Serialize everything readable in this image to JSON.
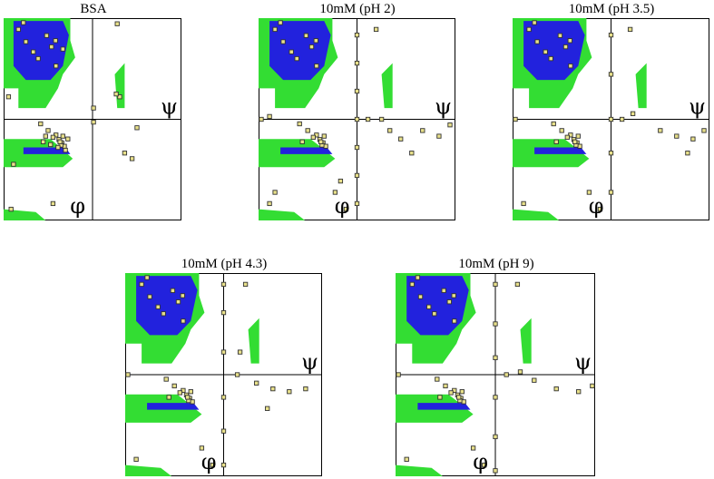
{
  "figure": {
    "panels": [
      {
        "title": "BSA",
        "x_symbol": "φ",
        "y_symbol": "ψ"
      },
      {
        "title": "10mM (pH 2)",
        "x_symbol": "φ",
        "y_symbol": "ψ"
      },
      {
        "title": "10mM (pH 3.5)",
        "x_symbol": "φ",
        "y_symbol": "ψ"
      },
      {
        "title": "10mM (pH 4.3)",
        "x_symbol": "φ",
        "y_symbol": "ψ"
      },
      {
        "title": "10mM (pH 9)",
        "x_symbol": "φ",
        "y_symbol": "ψ"
      }
    ]
  },
  "colors": {
    "allowed_region": "#33dd33",
    "core_region": "#2222dd",
    "residue_fill": "#e8e08a",
    "residue_stroke": "#333333",
    "axis": "#000000"
  },
  "chart_data": [
    {
      "type": "scatter",
      "title": "BSA",
      "xlabel": "φ",
      "ylabel": "ψ",
      "xlim": [
        -180,
        180
      ],
      "ylim": [
        -180,
        180
      ],
      "series": [
        {
          "values": [
            [
              -93,
              149
            ],
            [
              -83,
              129
            ],
            [
              -110,
              108
            ],
            [
              -74,
              95
            ],
            [
              -135,
              138
            ],
            [
              -62,
              -42
            ],
            [
              -68,
              -36
            ],
            [
              -57,
              -48
            ],
            [
              -74,
              -28
            ],
            [
              -90,
              -20
            ],
            [
              -64,
              -46
            ],
            [
              -105,
              -8
            ],
            [
              -80,
              -32
            ],
            [
              -66,
              -40
            ],
            [
              -140,
              172
            ],
            [
              -150,
              160
            ],
            [
              -120,
              120
            ],
            [
              -75,
              140
            ],
            [
              -60,
              -30
            ],
            [
              -100,
              -40
            ],
            [
              -60,
              125
            ],
            [
              -160,
              -80
            ],
            [
              -170,
              40
            ],
            [
              55,
              40
            ],
            [
              48,
              45
            ],
            [
              90,
              -15
            ],
            [
              65,
              -60
            ],
            [
              -80,
              -150
            ],
            [
              50,
              170
            ],
            [
              -165,
              -160
            ],
            [
              -55,
              -55
            ],
            [
              -70,
              -50
            ],
            [
              -85,
              -45
            ],
            [
              -50,
              -35
            ],
            [
              -95,
              -30
            ],
            [
              2,
              20
            ],
            [
              2,
              -5
            ],
            [
              80,
              -70
            ]
          ]
        }
      ]
    },
    {
      "type": "scatter",
      "title": "10mM (pH 2)",
      "xlabel": "φ",
      "ylabel": "ψ",
      "xlim": [
        -180,
        180
      ],
      "ylim": [
        -180,
        180
      ],
      "series": [
        {
          "values": [
            [
              -93,
              149
            ],
            [
              -83,
              129
            ],
            [
              -110,
              108
            ],
            [
              -74,
              95
            ],
            [
              -135,
              138
            ],
            [
              -62,
              -42
            ],
            [
              -68,
              -36
            ],
            [
              -57,
              -48
            ],
            [
              -74,
              -28
            ],
            [
              -90,
              -20
            ],
            [
              -64,
              -46
            ],
            [
              -105,
              -8
            ],
            [
              -80,
              -32
            ],
            [
              -66,
              -40
            ],
            [
              -140,
              172
            ],
            [
              -150,
              160
            ],
            [
              -120,
              120
            ],
            [
              -75,
              140
            ],
            [
              -60,
              -30
            ],
            [
              -100,
              -40
            ],
            [
              -160,
              -150
            ],
            [
              -150,
              -130
            ],
            [
              -30,
              -110
            ],
            [
              -40,
              -130
            ],
            [
              -20,
              -160
            ],
            [
              0,
              150
            ],
            [
              0,
              100
            ],
            [
              0,
              50
            ],
            [
              0,
              0
            ],
            [
              0,
              -50
            ],
            [
              0,
              -100
            ],
            [
              0,
              -150
            ],
            [
              35,
              160
            ],
            [
              60,
              -20
            ],
            [
              80,
              -35
            ],
            [
              120,
              -20
            ],
            [
              150,
              -30
            ],
            [
              170,
              -10
            ],
            [
              100,
              -60
            ],
            [
              -175,
              0
            ],
            [
              -160,
              5
            ],
            [
              20,
              0
            ],
            [
              45,
              0
            ]
          ]
        }
      ]
    },
    {
      "type": "scatter",
      "title": "10mM (pH 3.5)",
      "xlabel": "φ",
      "ylabel": "ψ",
      "xlim": [
        -180,
        180
      ],
      "ylim": [
        -180,
        180
      ],
      "series": [
        {
          "values": [
            [
              -93,
              149
            ],
            [
              -83,
              129
            ],
            [
              -110,
              108
            ],
            [
              -74,
              95
            ],
            [
              -135,
              138
            ],
            [
              -62,
              -42
            ],
            [
              -68,
              -36
            ],
            [
              -57,
              -48
            ],
            [
              -74,
              -28
            ],
            [
              -90,
              -20
            ],
            [
              -64,
              -46
            ],
            [
              -105,
              -8
            ],
            [
              -80,
              -32
            ],
            [
              -66,
              -40
            ],
            [
              -140,
              172
            ],
            [
              -150,
              160
            ],
            [
              -120,
              120
            ],
            [
              -75,
              140
            ],
            [
              -60,
              -30
            ],
            [
              -100,
              -40
            ],
            [
              -160,
              -150
            ],
            [
              -40,
              -130
            ],
            [
              -20,
              -160
            ],
            [
              0,
              150
            ],
            [
              0,
              80
            ],
            [
              0,
              0
            ],
            [
              0,
              -60
            ],
            [
              0,
              -130
            ],
            [
              35,
              160
            ],
            [
              90,
              -20
            ],
            [
              120,
              -30
            ],
            [
              150,
              -35
            ],
            [
              170,
              -20
            ],
            [
              140,
              -60
            ],
            [
              -175,
              0
            ],
            [
              20,
              0
            ],
            [
              40,
              10
            ]
          ]
        }
      ]
    },
    {
      "type": "scatter",
      "title": "10mM (pH 4.3)",
      "xlabel": "φ",
      "ylabel": "ψ",
      "xlim": [
        -180,
        180
      ],
      "ylim": [
        -180,
        180
      ],
      "series": [
        {
          "values": [
            [
              -93,
              149
            ],
            [
              -83,
              129
            ],
            [
              -110,
              108
            ],
            [
              -74,
              95
            ],
            [
              -135,
              138
            ],
            [
              -62,
              -42
            ],
            [
              -68,
              -36
            ],
            [
              -57,
              -48
            ],
            [
              -74,
              -28
            ],
            [
              -90,
              -20
            ],
            [
              -64,
              -46
            ],
            [
              -105,
              -8
            ],
            [
              -80,
              -32
            ],
            [
              -66,
              -40
            ],
            [
              -140,
              172
            ],
            [
              -150,
              160
            ],
            [
              -120,
              120
            ],
            [
              -75,
              140
            ],
            [
              -60,
              -30
            ],
            [
              -100,
              -40
            ],
            [
              -160,
              -150
            ],
            [
              -40,
              -130
            ],
            [
              -20,
              -160
            ],
            [
              0,
              160
            ],
            [
              0,
              110
            ],
            [
              0,
              40
            ],
            [
              0,
              -40
            ],
            [
              0,
              -100
            ],
            [
              0,
              -160
            ],
            [
              40,
              160
            ],
            [
              30,
              40
            ],
            [
              60,
              -15
            ],
            [
              90,
              -25
            ],
            [
              120,
              -30
            ],
            [
              150,
              -25
            ],
            [
              80,
              -60
            ],
            [
              -175,
              0
            ],
            [
              25,
              0
            ]
          ]
        }
      ]
    },
    {
      "type": "scatter",
      "title": "10mM (pH 9)",
      "xlabel": "φ",
      "ylabel": "ψ",
      "xlim": [
        -180,
        180
      ],
      "ylim": [
        -180,
        180
      ],
      "series": [
        {
          "values": [
            [
              -93,
              149
            ],
            [
              -83,
              129
            ],
            [
              -110,
              108
            ],
            [
              -74,
              95
            ],
            [
              -135,
              138
            ],
            [
              -62,
              -42
            ],
            [
              -68,
              -36
            ],
            [
              -57,
              -48
            ],
            [
              -74,
              -28
            ],
            [
              -90,
              -20
            ],
            [
              -64,
              -46
            ],
            [
              -105,
              -8
            ],
            [
              -80,
              -32
            ],
            [
              -66,
              -40
            ],
            [
              -140,
              172
            ],
            [
              -150,
              160
            ],
            [
              -120,
              120
            ],
            [
              -75,
              140
            ],
            [
              -60,
              -30
            ],
            [
              -100,
              -40
            ],
            [
              -160,
              -150
            ],
            [
              -40,
              -130
            ],
            [
              -20,
              -160
            ],
            [
              0,
              160
            ],
            [
              0,
              90
            ],
            [
              0,
              30
            ],
            [
              0,
              -40
            ],
            [
              0,
              -110
            ],
            [
              0,
              -170
            ],
            [
              40,
              160
            ],
            [
              70,
              -10
            ],
            [
              110,
              -25
            ],
            [
              150,
              -30
            ],
            [
              175,
              -20
            ],
            [
              -175,
              0
            ],
            [
              20,
              0
            ],
            [
              45,
              5
            ]
          ]
        }
      ]
    }
  ]
}
